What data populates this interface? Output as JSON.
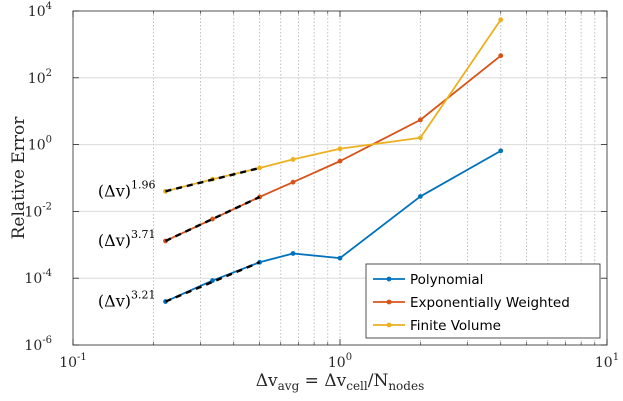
{
  "chart_data": {
    "type": "line",
    "xscale": "log",
    "yscale": "log",
    "xlim": [
      0.1,
      10
    ],
    "ylim": [
      1e-06,
      10000.0
    ],
    "grid": {
      "x_minor": true,
      "y_major": true
    },
    "xlabel": {
      "main": "Δv",
      "sub1": "avg",
      "mid": " = Δv",
      "sub2": "cell",
      "tail": "/N",
      "sub3": "nodes"
    },
    "ylabel": "Relative Error",
    "x_ticks": [
      {
        "value": 0.1,
        "base": "10",
        "exp": "-1"
      },
      {
        "value": 1,
        "base": "10",
        "exp": "0"
      },
      {
        "value": 10,
        "base": "10",
        "exp": "1"
      }
    ],
    "y_ticks": [
      {
        "value": 1e-06,
        "base": "10",
        "exp": "-6"
      },
      {
        "value": 0.0001,
        "base": "10",
        "exp": "-4"
      },
      {
        "value": 0.01,
        "base": "10",
        "exp": "-2"
      },
      {
        "value": 1,
        "base": "10",
        "exp": "0"
      },
      {
        "value": 100.0,
        "base": "10",
        "exp": "2"
      },
      {
        "value": 10000.0,
        "base": "10",
        "exp": "4"
      }
    ],
    "series": [
      {
        "name": "Polynomial",
        "color": "#0072BD",
        "x": [
          0.222,
          0.333,
          0.5,
          0.667,
          1.0,
          2.0,
          4.0
        ],
        "y": [
          2e-05,
          8.5e-05,
          0.0003,
          0.00055,
          0.0004,
          0.028,
          0.65
        ]
      },
      {
        "name": "Exponentially Weighted",
        "color": "#D95319",
        "x": [
          0.222,
          0.333,
          0.5,
          0.667,
          1.0,
          2.0,
          4.0
        ],
        "y": [
          0.0013,
          0.0059,
          0.027,
          0.075,
          0.32,
          5.5,
          460
        ]
      },
      {
        "name": "Finite Volume",
        "color": "#EDB120",
        "x": [
          0.222,
          0.333,
          0.5,
          0.667,
          1.0,
          2.0,
          4.0
        ],
        "y": [
          0.04,
          0.092,
          0.2,
          0.36,
          0.75,
          1.6,
          5500
        ]
      }
    ],
    "fit_lines": [
      {
        "label_base": "(Δv)",
        "label_exp": "1.96",
        "x": [
          0.222,
          0.5
        ],
        "y": [
          0.04,
          0.2
        ],
        "color": "#000000"
      },
      {
        "label_base": "(Δv)",
        "label_exp": "3.71",
        "x": [
          0.222,
          0.5
        ],
        "y": [
          0.0013,
          0.027
        ],
        "color": "#000000"
      },
      {
        "label_base": "(Δv)",
        "label_exp": "3.21",
        "x": [
          0.222,
          0.5
        ],
        "y": [
          2e-05,
          0.0003
        ],
        "color": "#000000"
      }
    ],
    "legend": {
      "position": "bottom-right"
    }
  }
}
